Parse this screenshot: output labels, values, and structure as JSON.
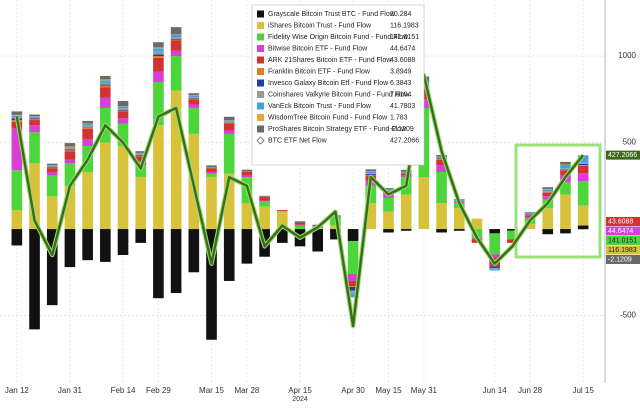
{
  "chart_data": {
    "type": "bar",
    "stacked": true,
    "categories": [
      "Jan 12",
      null,
      null,
      "Jan 31",
      null,
      null,
      "Feb 14",
      null,
      "Feb 29",
      null,
      null,
      "Mar 15",
      null,
      "Mar 28",
      null,
      null,
      "Apr 15",
      null,
      null,
      "Apr 30",
      null,
      "May 15",
      null,
      "May 31",
      null,
      null,
      null,
      "Jun 14",
      null,
      "Jun 28",
      null,
      null,
      "Jul 15"
    ],
    "x_axis_label": "2024",
    "ylim": [
      -890,
      1324
    ],
    "yticks": [
      -500,
      500,
      1000
    ],
    "grid": true,
    "series": [
      {
        "name": "Grayscale Bitcoin Trust BTC - Fund Flow",
        "color": "#111111",
        "values": [
          -95,
          -580,
          -440,
          -220,
          -180,
          -190,
          -150,
          -80,
          -400,
          -370,
          -250,
          -640,
          -300,
          -200,
          -160,
          -80,
          -100,
          -130,
          -60,
          -70,
          0,
          -20,
          -10,
          0,
          -20,
          -10,
          0,
          -25,
          -10,
          0,
          -30,
          -25,
          20.284
        ]
      },
      {
        "name": "iShares Bitcoin Trust - Fund Flow",
        "color": "#d8c23c",
        "values": [
          110,
          380,
          190,
          250,
          330,
          500,
          480,
          300,
          600,
          800,
          550,
          300,
          320,
          150,
          130,
          100,
          0,
          5,
          20,
          0,
          150,
          100,
          200,
          300,
          150,
          120,
          60,
          0,
          0,
          30,
          120,
          200,
          116.1983
        ]
      },
      {
        "name": "Fidelity Wise Origin Bitcoin Fund - Fund Flow",
        "color": "#4cd63c",
        "values": [
          230,
          180,
          120,
          130,
          150,
          200,
          130,
          70,
          250,
          200,
          150,
          20,
          230,
          150,
          30,
          5,
          20,
          10,
          50,
          -190,
          100,
          80,
          100,
          400,
          180,
          30,
          -50,
          -120,
          -50,
          30,
          50,
          70,
          141.0151
        ]
      },
      {
        "name": "Bitwise Bitcoin ETF - Fund Flow",
        "color": "#d83fd8",
        "values": [
          240,
          40,
          20,
          20,
          40,
          60,
          30,
          20,
          60,
          30,
          20,
          10,
          20,
          10,
          5,
          0,
          5,
          5,
          10,
          -40,
          30,
          20,
          10,
          50,
          40,
          10,
          -10,
          -20,
          0,
          10,
          20,
          40,
          44.6474
        ]
      },
      {
        "name": "ARK 21Shares Bitcoin ETF - Fund Flow",
        "color": "#d23232",
        "values": [
          40,
          30,
          20,
          50,
          60,
          60,
          40,
          30,
          80,
          60,
          30,
          20,
          40,
          20,
          20,
          5,
          10,
          0,
          0,
          -30,
          30,
          20,
          10,
          60,
          30,
          0,
          -20,
          -50,
          -20,
          10,
          20,
          30,
          43.6088
        ]
      },
      {
        "name": "Franklin Bitcoin ETF - Fund Flow",
        "color": "#e07b28",
        "values": [
          10,
          5,
          3,
          5,
          5,
          10,
          5,
          5,
          10,
          5,
          5,
          3,
          5,
          3,
          2,
          0,
          0,
          0,
          0,
          -5,
          3,
          2,
          2,
          10,
          5,
          2,
          0,
          0,
          0,
          2,
          3,
          3,
          3.8949
        ]
      },
      {
        "name": "Invesco Galaxy Bitcoin Etf - Fund Flow",
        "color": "#1f3ea8",
        "values": [
          10,
          5,
          3,
          5,
          3,
          5,
          3,
          3,
          10,
          5,
          3,
          0,
          2,
          0,
          0,
          0,
          0,
          0,
          0,
          -20,
          5,
          2,
          2,
          5,
          3,
          0,
          0,
          -10,
          0,
          2,
          2,
          3,
          6.3843
        ]
      },
      {
        "name": "Coinshares Valkyrie Bitcoin Fund - Fund Flow",
        "color": "#9a9a9a",
        "values": [
          5,
          5,
          5,
          10,
          10,
          10,
          10,
          5,
          15,
          10,
          5,
          0,
          5,
          0,
          0,
          0,
          0,
          0,
          0,
          -20,
          5,
          3,
          3,
          10,
          5,
          0,
          0,
          -10,
          0,
          3,
          5,
          5,
          7.6104
        ]
      },
      {
        "name": "VanEck Bitcoin Trust - Fund Flow",
        "color": "#3fa2e2",
        "values": [
          10,
          5,
          5,
          5,
          10,
          15,
          10,
          5,
          20,
          15,
          10,
          5,
          5,
          0,
          0,
          0,
          0,
          0,
          0,
          -20,
          10,
          5,
          5,
          15,
          5,
          5,
          0,
          -5,
          0,
          5,
          10,
          20,
          41.7803
        ]
      },
      {
        "name": "WisdomTree Bitcoin Fund - Fund Flow",
        "color": "#e8a632",
        "values": [
          5,
          2,
          2,
          2,
          2,
          5,
          2,
          2,
          5,
          2,
          2,
          0,
          2,
          0,
          0,
          0,
          0,
          0,
          0,
          0,
          2,
          0,
          0,
          2,
          0,
          0,
          0,
          0,
          0,
          0,
          2,
          2,
          1.783
        ]
      },
      {
        "name": "ProShares Bitcoin Strategy ETF - Fund Flow",
        "color": "#6a6a6a",
        "values": [
          20,
          10,
          10,
          20,
          15,
          20,
          30,
          10,
          30,
          40,
          10,
          10,
          20,
          10,
          5,
          0,
          10,
          5,
          0,
          0,
          10,
          5,
          10,
          30,
          10,
          5,
          0,
          0,
          0,
          5,
          10,
          15,
          -2.1209
        ]
      }
    ],
    "line_series": {
      "name": "BTC ETF Net Flow",
      "color": "#3f6a1c",
      "values": [
        650,
        50,
        -150,
        250,
        400,
        600,
        500,
        350,
        650,
        700,
        250,
        -200,
        300,
        250,
        -100,
        20,
        -50,
        10,
        100,
        -560,
        300,
        200,
        250,
        890,
        450,
        150,
        -50,
        -200,
        -100,
        50,
        150,
        300,
        427.2066
      ]
    }
  }
}
